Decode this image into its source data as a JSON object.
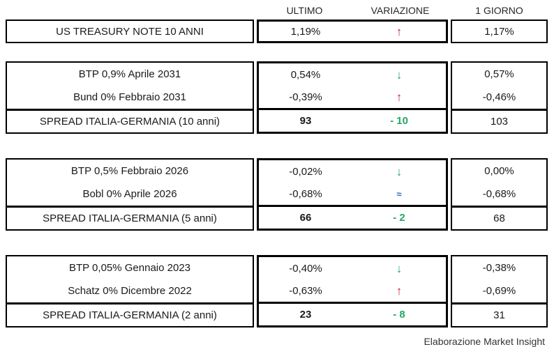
{
  "header": {
    "ultimo": "ULTIMO",
    "variazione": "VARIAZIONE",
    "giorno": "1 GIORNO"
  },
  "colors": {
    "up_red": "#bd2332",
    "down_green": "#27a567",
    "flat_blue": "#2d68ae",
    "border": "#000000"
  },
  "tables": [
    {
      "rows": [
        {
          "label": "US TREASURY NOTE 10 ANNI",
          "ultimo": "1,19%",
          "change_symbol": "↑",
          "change_kind": "up",
          "giorno": "1,17%"
        }
      ]
    },
    {
      "rows": [
        {
          "label": "BTP 0,9% Aprile 2031",
          "ultimo": "0,54%",
          "change_symbol": "↓",
          "change_kind": "down",
          "giorno": "0,57%"
        },
        {
          "label": "Bund 0% Febbraio 2031",
          "ultimo": "-0,39%",
          "change_symbol": "↑",
          "change_kind": "up",
          "giorno": "-0,46%"
        }
      ],
      "spread": {
        "label": "SPREAD ITALIA-GERMANIA (10 anni)",
        "ultimo": "93",
        "change": "- 10",
        "change_kind": "down",
        "giorno": "103"
      }
    },
    {
      "rows": [
        {
          "label": "BTP 0,5% Febbraio 2026",
          "ultimo": "-0,02%",
          "change_symbol": "↓",
          "change_kind": "down",
          "giorno": "0,00%"
        },
        {
          "label": "Bobl 0% Aprile 2026",
          "ultimo": "-0,68%",
          "change_symbol": "≈",
          "change_kind": "flat",
          "giorno": "-0,68%"
        }
      ],
      "spread": {
        "label": "SPREAD ITALIA-GERMANIA (5 anni)",
        "ultimo": "66",
        "change": "- 2",
        "change_kind": "down",
        "giorno": "68"
      }
    },
    {
      "rows": [
        {
          "label": "BTP 0,05% Gennaio 2023",
          "ultimo": "-0,40%",
          "change_symbol": "↓",
          "change_kind": "down",
          "giorno": "-0,38%"
        },
        {
          "label": "Schatz 0% Dicembre 2022",
          "ultimo": "-0,63%",
          "change_symbol": "↑",
          "change_kind": "up",
          "giorno": "-0,69%"
        }
      ],
      "spread": {
        "label": "SPREAD ITALIA-GERMANIA (2 anni)",
        "ultimo": "23",
        "change": "- 8",
        "change_kind": "down",
        "giorno": "31"
      }
    }
  ],
  "footer": {
    "credit": "Elaborazione Market Insight"
  }
}
